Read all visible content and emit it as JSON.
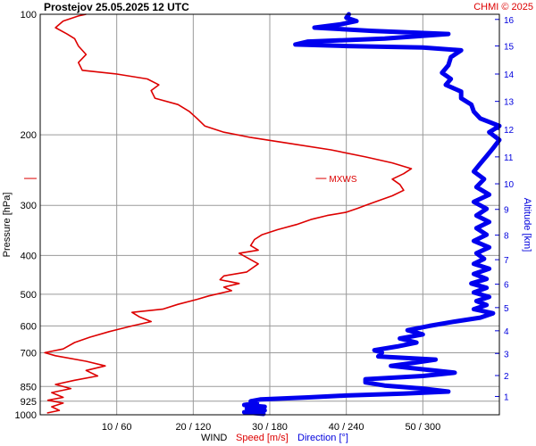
{
  "chart_data": {
    "type": "line",
    "title": "Prostejov    25.05.2025 12 UTC",
    "credit": "CHMI © 2025",
    "ylabel": "Pressure [hPa]",
    "y2label": "Altitude [km]",
    "xlabel_parts": {
      "wind": "WIND",
      "speed": "Speed [m/s]",
      "direction": "Direction [°]"
    },
    "y_scale": "log",
    "ylim": [
      1000,
      100
    ],
    "speed_xlim": [
      0,
      60
    ],
    "direction_xlim": [
      0,
      360
    ],
    "pressure_ticks": [
      100,
      200,
      300,
      400,
      500,
      600,
      700,
      850,
      925,
      1000
    ],
    "x_ticks": [
      "10 / 60",
      "20 / 120",
      "30 / 180",
      "40 / 240",
      "50 / 300"
    ],
    "x_tick_speed_values": [
      10,
      20,
      30,
      40,
      50
    ],
    "altitude_ticks": [
      {
        "label": "1",
        "pressure": 900
      },
      {
        "label": "2",
        "pressure": 798
      },
      {
        "label": "3",
        "pressure": 703
      },
      {
        "label": "4",
        "pressure": 617
      },
      {
        "label": "5",
        "pressure": 540
      },
      {
        "label": "6",
        "pressure": 472
      },
      {
        "label": "7",
        "pressure": 410
      },
      {
        "label": "8",
        "pressure": 356
      },
      {
        "label": "9",
        "pressure": 307
      },
      {
        "label": "10",
        "pressure": 265
      },
      {
        "label": "11",
        "pressure": 227
      },
      {
        "label": "12",
        "pressure": 194
      },
      {
        "label": "13",
        "pressure": 165
      },
      {
        "label": "14",
        "pressure": 141
      },
      {
        "label": "15",
        "pressure": 120
      },
      {
        "label": "16",
        "pressure": 103
      }
    ],
    "annotation": {
      "label": "MXWS",
      "pressure": 257,
      "speed": 36
    },
    "series": [
      {
        "name": "Speed [m/s]",
        "color": "#dd0000",
        "points": [
          [
            0.9,
            990
          ],
          [
            2.5,
            975
          ],
          [
            1.5,
            955
          ],
          [
            3.0,
            935
          ],
          [
            1.0,
            920
          ],
          [
            3.0,
            905
          ],
          [
            1.5,
            880
          ],
          [
            4.0,
            860
          ],
          [
            2.0,
            840
          ],
          [
            4.5,
            820
          ],
          [
            7.5,
            800
          ],
          [
            6.0,
            775
          ],
          [
            8.5,
            755
          ],
          [
            6.0,
            735
          ],
          [
            2.0,
            712
          ],
          [
            0.6,
            700
          ],
          [
            3.0,
            685
          ],
          [
            4.5,
            660
          ],
          [
            6.5,
            640
          ],
          [
            9.0,
            620
          ],
          [
            12.0,
            600
          ],
          [
            14.5,
            585
          ],
          [
            13.0,
            570
          ],
          [
            12.0,
            555
          ],
          [
            16.0,
            545
          ],
          [
            18.0,
            530
          ],
          [
            20.5,
            515
          ],
          [
            22.0,
            505
          ],
          [
            25.0,
            490
          ],
          [
            24.0,
            480
          ],
          [
            26.0,
            470
          ],
          [
            23.5,
            460
          ],
          [
            24.0,
            450
          ],
          [
            27.0,
            440
          ],
          [
            28.5,
            420
          ],
          [
            27.0,
            405
          ],
          [
            26.0,
            395
          ],
          [
            28.5,
            388
          ],
          [
            27.5,
            378
          ],
          [
            28.0,
            365
          ],
          [
            29.0,
            355
          ],
          [
            31.0,
            345
          ],
          [
            33.5,
            335
          ],
          [
            35.5,
            325
          ],
          [
            37.5,
            318
          ],
          [
            40.0,
            312
          ],
          [
            41.5,
            305
          ],
          [
            42.5,
            300
          ],
          [
            44.0,
            293
          ],
          [
            46.0,
            284
          ],
          [
            47.5,
            275
          ],
          [
            47.0,
            266
          ],
          [
            46.0,
            258
          ],
          [
            47.5,
            250
          ],
          [
            48.5,
            243
          ],
          [
            46.0,
            235
          ],
          [
            42.5,
            227
          ],
          [
            38.0,
            218
          ],
          [
            32.5,
            210
          ],
          [
            27.5,
            203
          ],
          [
            24.0,
            197
          ],
          [
            21.5,
            190
          ],
          [
            20.5,
            182
          ],
          [
            19.5,
            175
          ],
          [
            18.0,
            168
          ],
          [
            15.0,
            162
          ],
          [
            14.5,
            155
          ],
          [
            15.5,
            150
          ],
          [
            14.0,
            145
          ],
          [
            10.0,
            141
          ],
          [
            5.5,
            138
          ],
          [
            5.0,
            132
          ],
          [
            6.0,
            126
          ],
          [
            5.0,
            120
          ],
          [
            4.5,
            115
          ],
          [
            3.5,
            112
          ],
          [
            2.0,
            108
          ],
          [
            3.0,
            104
          ],
          [
            5.0,
            101
          ],
          [
            6.0,
            100
          ]
        ]
      },
      {
        "name": "Direction [°]",
        "color": "#0000ee",
        "points": [
          [
            175,
            995
          ],
          [
            160,
            985
          ],
          [
            176,
            975
          ],
          [
            162,
            965
          ],
          [
            176,
            955
          ],
          [
            160,
            945
          ],
          [
            170,
            935
          ],
          [
            165,
            925
          ],
          [
            173,
            915
          ],
          [
            210,
            905
          ],
          [
            240,
            895
          ],
          [
            285,
            885
          ],
          [
            320,
            875
          ],
          [
            300,
            860
          ],
          [
            270,
            845
          ],
          [
            255,
            830
          ],
          [
            255,
            815
          ],
          [
            300,
            800
          ],
          [
            325,
            785
          ],
          [
            300,
            770
          ],
          [
            275,
            755
          ],
          [
            295,
            740
          ],
          [
            310,
            728
          ],
          [
            265,
            715
          ],
          [
            268,
            700
          ],
          [
            262,
            690
          ],
          [
            280,
            675
          ],
          [
            295,
            660
          ],
          [
            282,
            645
          ],
          [
            300,
            630
          ],
          [
            288,
            615
          ],
          [
            305,
            600
          ],
          [
            325,
            585
          ],
          [
            345,
            572
          ],
          [
            355,
            558
          ],
          [
            340,
            545
          ],
          [
            350,
            532
          ],
          [
            342,
            520
          ],
          [
            352,
            508
          ],
          [
            340,
            495
          ],
          [
            350,
            482
          ],
          [
            338,
            470
          ],
          [
            350,
            458
          ],
          [
            340,
            445
          ],
          [
            352,
            432
          ],
          [
            340,
            420
          ],
          [
            348,
            408
          ],
          [
            342,
            395
          ],
          [
            352,
            382
          ],
          [
            340,
            368
          ],
          [
            350,
            355
          ],
          [
            342,
            342
          ],
          [
            352,
            330
          ],
          [
            342,
            318
          ],
          [
            350,
            306
          ],
          [
            340,
            294
          ],
          [
            352,
            282
          ],
          [
            342,
            270
          ],
          [
            348,
            258
          ],
          [
            340,
            247
          ],
          [
            345,
            236
          ],
          [
            350,
            226
          ],
          [
            355,
            216
          ],
          [
            360,
            206
          ],
          [
            352,
            197
          ],
          [
            360,
            190
          ],
          [
            345,
            182
          ],
          [
            340,
            175
          ],
          [
            338,
            168
          ],
          [
            330,
            162
          ],
          [
            330,
            156
          ],
          [
            318,
            150
          ],
          [
            322,
            145
          ],
          [
            315,
            140
          ],
          [
            320,
            134
          ],
          [
            322,
            128
          ],
          [
            330,
            123
          ],
          [
            300,
            121
          ],
          [
            240,
            120
          ],
          [
            200,
            119
          ],
          [
            210,
            117
          ],
          [
            270,
            115
          ],
          [
            320,
            112
          ],
          [
            260,
            110
          ],
          [
            215,
            108
          ],
          [
            235,
            106
          ],
          [
            248,
            104
          ],
          [
            240,
            102
          ],
          [
            242,
            100
          ]
        ]
      }
    ]
  }
}
